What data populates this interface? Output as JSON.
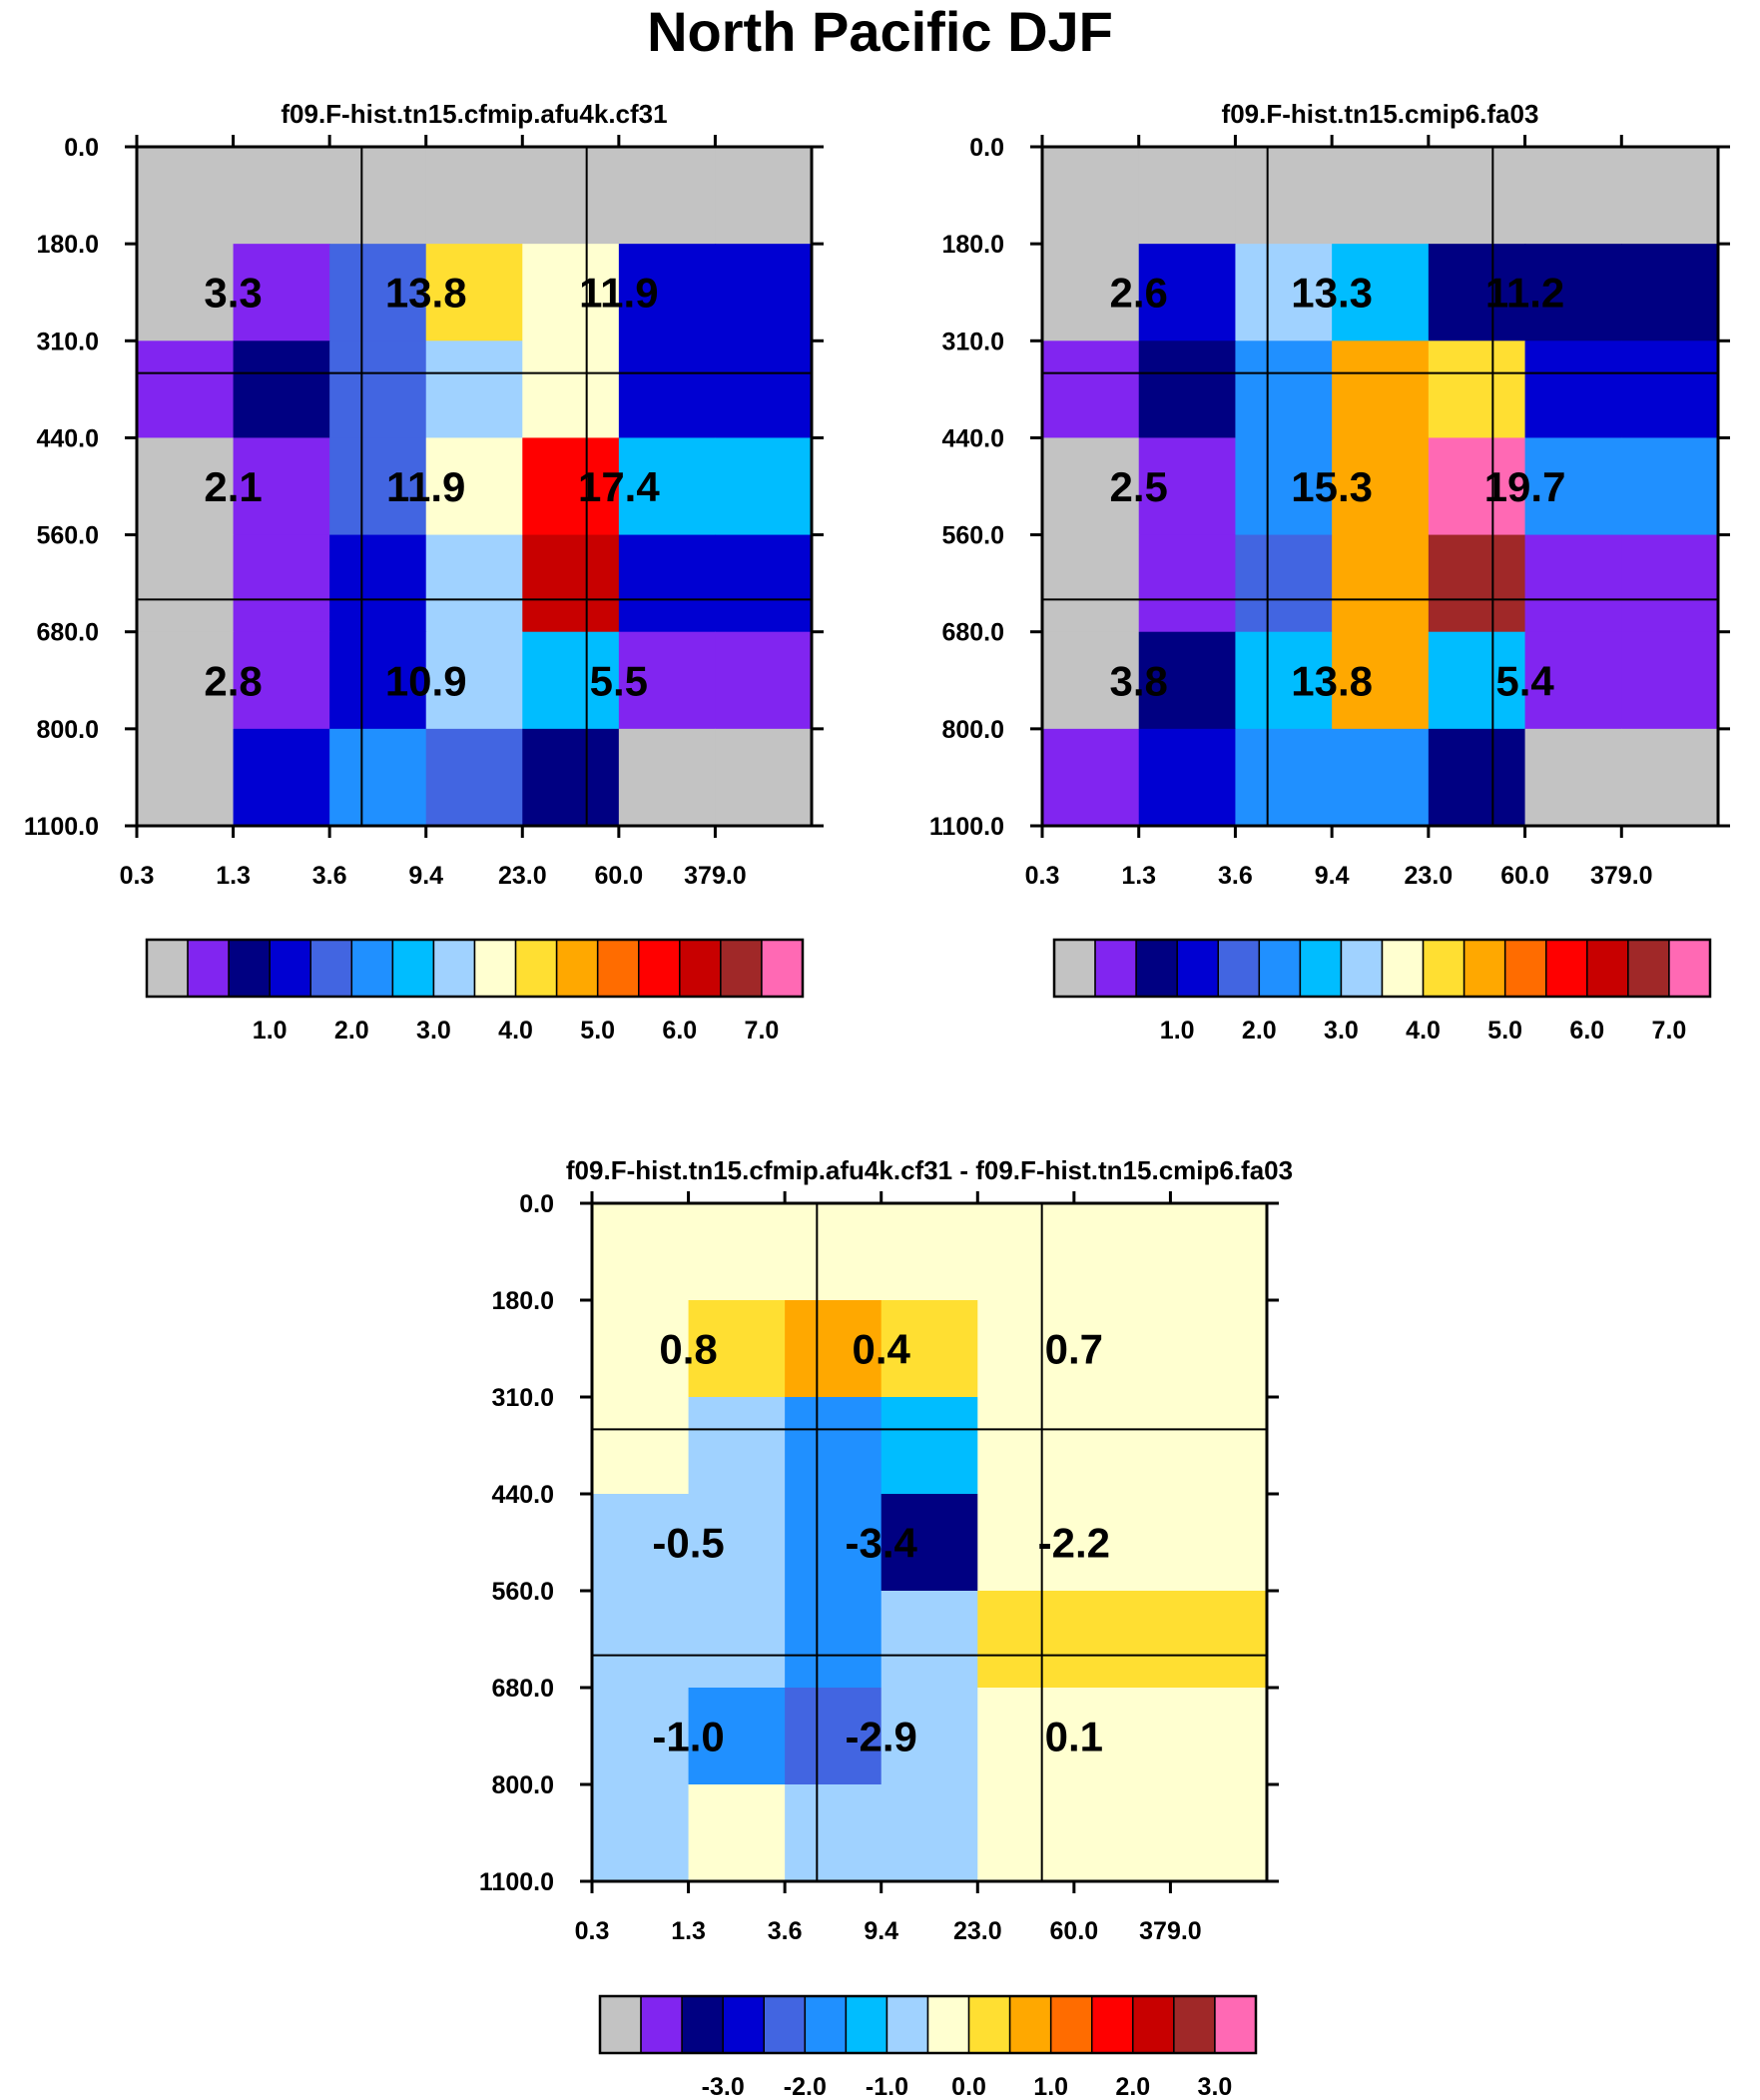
{
  "page_title": "North Pacific DJF",
  "palettes": {
    "main": [
      "#c3c3c3",
      "#8125f0",
      "#000082",
      "#0000d2",
      "#4265e1",
      "#2090ff",
      "#00bdff",
      "#a0d2ff",
      "#ffffd0",
      "#ffdf32",
      "#ffa800",
      "#ff6c00",
      "#ff0000",
      "#c80000",
      "#a02828",
      "#ff69b4"
    ]
  },
  "chart_data": [
    {
      "type": "heatmap",
      "title": "f09.F-hist.tn15.cfmip.afu4k.cf31",
      "x_ticks": [
        "0.3",
        "1.3",
        "3.6",
        "9.4",
        "23.0",
        "60.0",
        "379.0"
      ],
      "y_ticks": [
        "0.0",
        "180.0",
        "310.0",
        "440.0",
        "560.0",
        "680.0",
        "800.0",
        "1100.0"
      ],
      "cells": [
        [
          0,
          0,
          0,
          0,
          0,
          0,
          0
        ],
        [
          0,
          1,
          4,
          9,
          8,
          3,
          3
        ],
        [
          1,
          2,
          4,
          7,
          8,
          3,
          3
        ],
        [
          0,
          1,
          4,
          8,
          12,
          6,
          6
        ],
        [
          0,
          1,
          3,
          7,
          13,
          3,
          3
        ],
        [
          0,
          1,
          3,
          7,
          6,
          1,
          1
        ],
        [
          0,
          3,
          5,
          4,
          2,
          0,
          0
        ]
      ],
      "group_values": [
        [
          "3.3",
          "13.8",
          "11.9"
        ],
        [
          "2.1",
          "11.9",
          "17.4"
        ],
        [
          "2.8",
          "10.9",
          "5.5"
        ]
      ],
      "colorbar_labels": [
        "1.0",
        "2.0",
        "3.0",
        "4.0",
        "5.0",
        "6.0",
        "7.0"
      ],
      "grid": true
    },
    {
      "type": "heatmap",
      "title": "f09.F-hist.tn15.cmip6.fa03",
      "x_ticks": [
        "0.3",
        "1.3",
        "3.6",
        "9.4",
        "23.0",
        "60.0",
        "379.0"
      ],
      "y_ticks": [
        "0.0",
        "180.0",
        "310.0",
        "440.0",
        "560.0",
        "680.0",
        "800.0",
        "1100.0"
      ],
      "cells": [
        [
          0,
          0,
          0,
          0,
          0,
          0,
          0
        ],
        [
          0,
          3,
          7,
          6,
          2,
          2,
          2
        ],
        [
          1,
          2,
          5,
          10,
          9,
          3,
          3
        ],
        [
          0,
          1,
          5,
          10,
          15,
          5,
          5
        ],
        [
          0,
          1,
          4,
          10,
          14,
          1,
          1
        ],
        [
          0,
          2,
          6,
          10,
          6,
          1,
          1
        ],
        [
          1,
          3,
          5,
          5,
          2,
          0,
          0
        ]
      ],
      "group_values": [
        [
          "2.6",
          "13.3",
          "11.2"
        ],
        [
          "2.5",
          "15.3",
          "19.7"
        ],
        [
          "3.8",
          "13.8",
          "5.4"
        ]
      ],
      "colorbar_labels": [
        "1.0",
        "2.0",
        "3.0",
        "4.0",
        "5.0",
        "6.0",
        "7.0"
      ],
      "grid": true
    },
    {
      "type": "heatmap",
      "title": "f09.F-hist.tn15.cfmip.afu4k.cf31 - f09.F-hist.tn15.cmip6.fa03",
      "x_ticks": [
        "0.3",
        "1.3",
        "3.6",
        "9.4",
        "23.0",
        "60.0",
        "379.0"
      ],
      "y_ticks": [
        "0.0",
        "180.0",
        "310.0",
        "440.0",
        "560.0",
        "680.0",
        "800.0",
        "1100.0"
      ],
      "cells": [
        [
          8,
          8,
          8,
          8,
          8,
          8,
          8
        ],
        [
          8,
          9,
          10,
          9,
          8,
          8,
          8
        ],
        [
          8,
          7,
          5,
          6,
          8,
          8,
          8
        ],
        [
          7,
          7,
          5,
          2,
          8,
          8,
          8
        ],
        [
          7,
          7,
          5,
          7,
          9,
          9,
          9
        ],
        [
          7,
          5,
          4,
          7,
          8,
          8,
          8
        ],
        [
          7,
          8,
          7,
          7,
          8,
          8,
          8
        ]
      ],
      "group_values": [
        [
          "0.8",
          "0.4",
          "0.7"
        ],
        [
          "-0.5",
          "-3.4",
          "-2.2"
        ],
        [
          "-1.0",
          "-2.9",
          "0.1"
        ]
      ],
      "colorbar_labels": [
        "-3.0",
        "-2.0",
        "-1.0",
        "0.0",
        "1.0",
        "2.0",
        "3.0"
      ],
      "grid": true
    }
  ]
}
